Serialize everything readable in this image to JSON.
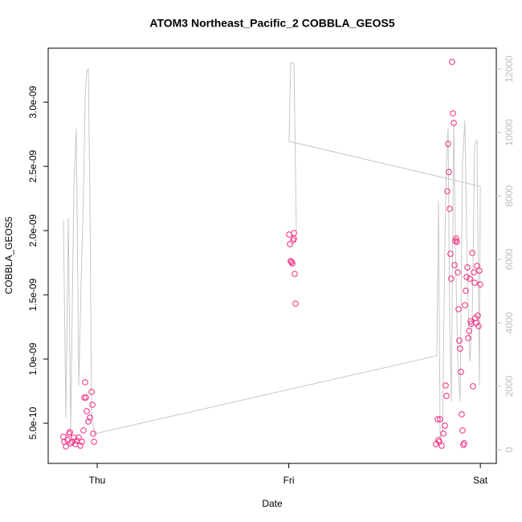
{
  "chart_data": {
    "type": "scatter",
    "title": "ATOM3 Northeast_Pacific_2 COBBLA_GEOS5",
    "x_label": "Date",
    "y_label": "COBBLA_GEOS5",
    "xlim": [
      -6.14,
      50.0
    ],
    "xticks": [
      {
        "value": 0,
        "label": "Thu"
      },
      {
        "value": 24,
        "label": "Fri"
      },
      {
        "value": 48,
        "label": "Sat"
      }
    ],
    "ylim": [
      1.875e-10,
      3.42e-09
    ],
    "yticks": [
      {
        "value": 5e-10,
        "label": "5.0e-10"
      },
      {
        "value": 1e-09,
        "label": "1.0e-09"
      },
      {
        "value": 1.5e-09,
        "label": "1.5e-09"
      },
      {
        "value": 2e-09,
        "label": "2.0e-09"
      },
      {
        "value": 2.5e-09,
        "label": "2.5e-09"
      },
      {
        "value": 3e-09,
        "label": "3.0e-09"
      }
    ],
    "y2lim": [
      -430,
      12660
    ],
    "y2ticks": [
      0,
      2000,
      4000,
      6000,
      8000,
      10000,
      12000
    ],
    "series": [
      {
        "color": "#f0287f",
        "x": [
          -4.23,
          -4.12,
          -3.92,
          -3.72,
          -3.52,
          -3.42,
          -3.32,
          -3.12,
          -2.92,
          -2.72,
          -2.52,
          -2.31,
          -2.11,
          -1.91,
          -1.71,
          -1.61,
          -1.51,
          -1.41,
          -1.31,
          -1.11,
          -0.91,
          -0.7,
          -0.6,
          -0.5,
          -0.4,
          24.04,
          24.14,
          24.24,
          24.35,
          24.45,
          24.55,
          24.65,
          24.65,
          24.75,
          24.85,
          42.45,
          42.65,
          42.76,
          42.86,
          42.96,
          43.16,
          43.36,
          43.56,
          43.66,
          43.76,
          43.86,
          43.96,
          44.06,
          44.16,
          44.26,
          44.36,
          44.46,
          44.57,
          44.67,
          44.77,
          44.87,
          44.97,
          45.07,
          45.17,
          45.27,
          45.37,
          45.47,
          45.57,
          45.67,
          45.77,
          45.87,
          45.97,
          46.07,
          46.18,
          46.28,
          46.38,
          46.48,
          46.58,
          46.68,
          46.78,
          46.88,
          46.98,
          47.08,
          47.18,
          47.28,
          47.38,
          47.48,
          47.58,
          47.68,
          47.78,
          47.88,
          47.99
        ],
        "values": [
          3.94e-10,
          3.56e-10,
          3.19e-10,
          3.69e-10,
          4.19e-10,
          4.31e-10,
          3.44e-10,
          3.56e-10,
          3.88e-10,
          3.38e-10,
          3.63e-10,
          3.88e-10,
          3.25e-10,
          3.56e-10,
          4.44e-10,
          7e-10,
          8.19e-10,
          7e-10,
          5.94e-10,
          5.13e-10,
          5.44e-10,
          7.44e-10,
          6.44e-10,
          4.19e-10,
          3.56e-10,
          1.969e-09,
          1.894e-09,
          1.763e-09,
          1.756e-09,
          1.744e-09,
          1.925e-09,
          1.938e-09,
          1.981e-09,
          1.663e-09,
          1.431e-09,
          3.38e-10,
          5.31e-10,
          3.69e-10,
          3.56e-10,
          5.31e-10,
          3.25e-10,
          4.19e-10,
          4.81e-10,
          7.94e-10,
          7.13e-10,
          2.306e-09,
          2.675e-09,
          2.456e-09,
          2.169e-09,
          1.819e-09,
          1.625e-09,
          3.313e-09,
          2.913e-09,
          2.838e-09,
          1.731e-09,
          1.919e-09,
          1.938e-09,
          1.913e-09,
          1.675e-09,
          1.388e-09,
          1.144e-09,
          1.081e-09,
          9e-10,
          5.69e-10,
          4.44e-10,
          3.31e-10,
          3.44e-10,
          1.419e-09,
          1.531e-09,
          1.638e-09,
          1.713e-09,
          1.163e-09,
          1.219e-09,
          1.625e-09,
          1.294e-09,
          1.275e-09,
          1.825e-09,
          7.88e-10,
          1.675e-09,
          1.594e-09,
          1.319e-09,
          1.281e-09,
          1.725e-09,
          1.338e-09,
          1.256e-09,
          1.688e-09,
          1.581e-09
        ]
      },
      {
        "axis": "y2",
        "color": "#c8c8c8",
        "x": [
          -4.23,
          -3.92,
          -3.62,
          -3.32,
          -2.92,
          -2.62,
          -2.31,
          -2.01,
          -1.71,
          -1.51,
          -1.31,
          -1.11,
          -0.91,
          -0.7,
          -0.3,
          42.55,
          42.76,
          42.96,
          43.26,
          43.56,
          43.76,
          43.96,
          44.16,
          44.36,
          44.67,
          44.87,
          45.17,
          45.47,
          45.77,
          46.07,
          46.38,
          46.68,
          46.98,
          47.28,
          47.58,
          47.88,
          47.99,
          24.04,
          24.24,
          24.65,
          24.95
        ],
        "values": [
          7216,
          1013,
          7292,
          633,
          8356,
          10128,
          2026,
          5317,
          8102,
          11141,
          11900,
          12027,
          7849,
          1013,
          506,
          2962,
          7849,
          380,
          506,
          6583,
          9115,
          10128,
          4051,
          1519,
          10381,
          6583,
          2785,
          1519,
          9115,
          10381,
          5317,
          2785,
          4051,
          9622,
          9748,
          2026,
          8305,
          9723,
          12204,
          12204,
          6836
        ]
      }
    ]
  }
}
